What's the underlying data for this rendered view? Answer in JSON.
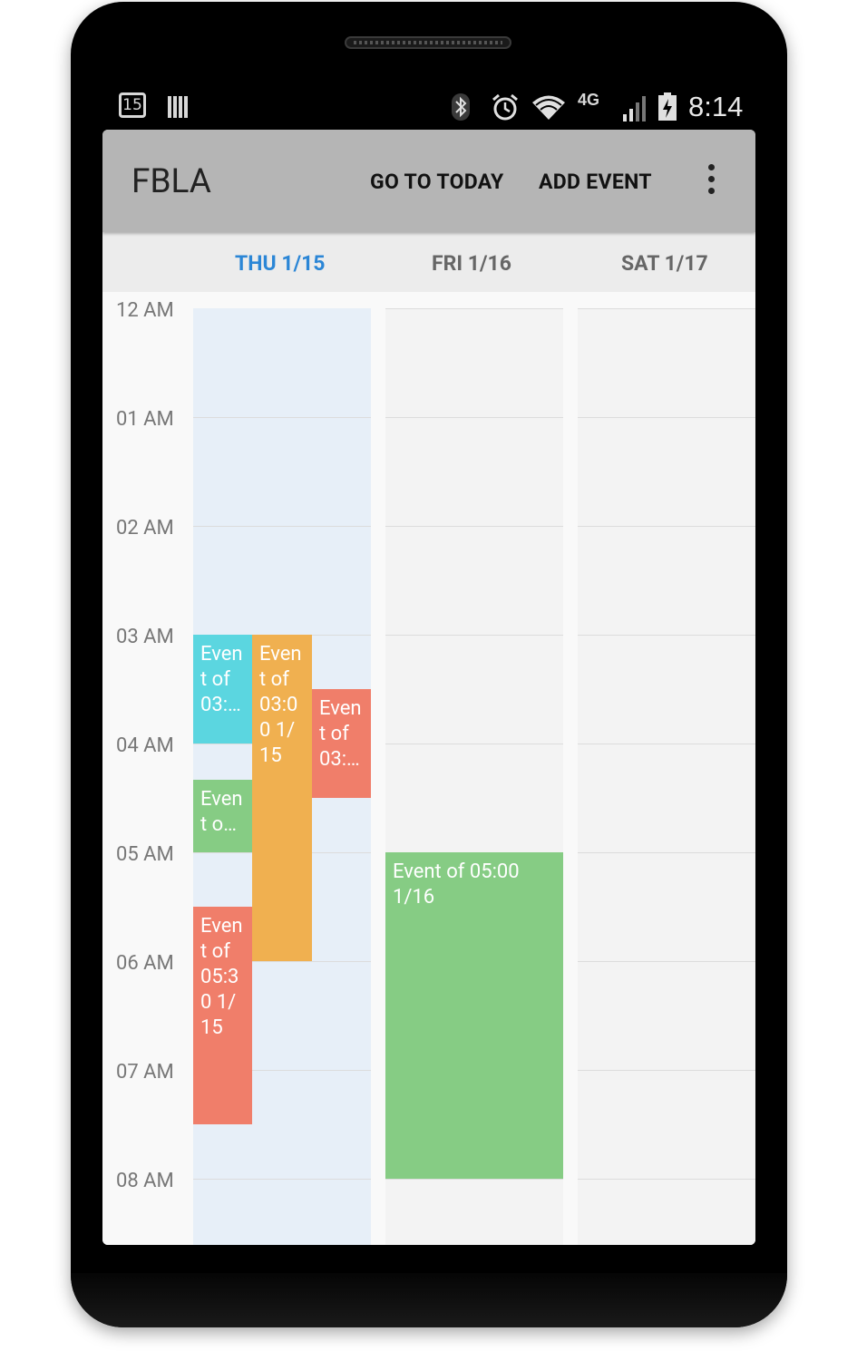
{
  "status_bar": {
    "calendar_day": "15",
    "network": "4G",
    "time": "8:14"
  },
  "app_bar": {
    "title": "FBLA",
    "go_to_today": "GO TO TODAY",
    "add_event": "ADD EVENT"
  },
  "days": [
    {
      "label": "THU 1/15",
      "is_today": true
    },
    {
      "label": "FRI 1/16",
      "is_today": false
    },
    {
      "label": "SAT 1/17",
      "is_today": false
    }
  ],
  "hours": [
    "12 AM",
    "01 AM",
    "02 AM",
    "03 AM",
    "04 AM",
    "05 AM",
    "06 AM",
    "07 AM",
    "08 AM"
  ],
  "events": [
    {
      "text": "Event of 03:…",
      "color": "#5bd6e0"
    },
    {
      "text": "Event of 03:00 1/15",
      "color": "#f0b050"
    },
    {
      "text": "Event of 03:…",
      "color": "#f07e6a"
    },
    {
      "text": "Event o…",
      "color": "#86cc84"
    },
    {
      "text": "Event of 05:30 1/15",
      "color": "#f07e6a"
    },
    {
      "text": "Event of 05:00 1/16",
      "color": "#86cc84"
    }
  ],
  "colors": {
    "today_accent": "#2b86d6",
    "app_bar": "#b5b5b5"
  }
}
